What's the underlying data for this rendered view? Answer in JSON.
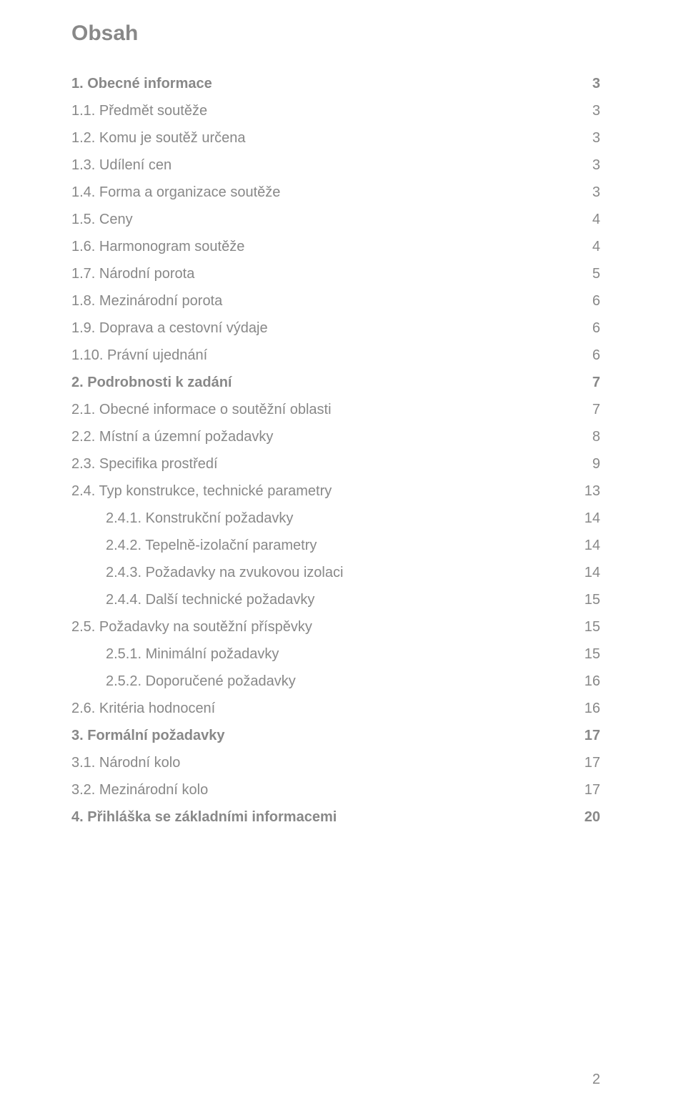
{
  "title": "Obsah",
  "toc": [
    {
      "label": "1. Obecné informace",
      "page": "3",
      "bold": true,
      "indent": 1
    },
    {
      "label": "1.1. Předmět soutěže",
      "page": "3",
      "bold": false,
      "indent": 1
    },
    {
      "label": "1.2. Komu je soutěž určena",
      "page": "3",
      "bold": false,
      "indent": 1
    },
    {
      "label": "1.3. Udílení cen",
      "page": "3",
      "bold": false,
      "indent": 1
    },
    {
      "label": "1.4. Forma a organizace soutěže",
      "page": "3",
      "bold": false,
      "indent": 1
    },
    {
      "label": "1.5. Ceny",
      "page": "4",
      "bold": false,
      "indent": 1
    },
    {
      "label": "1.6. Harmonogram soutěže",
      "page": "4",
      "bold": false,
      "indent": 1
    },
    {
      "label": "1.7. Národní porota",
      "page": "5",
      "bold": false,
      "indent": 1
    },
    {
      "label": "1.8. Mezinárodní porota",
      "page": "6",
      "bold": false,
      "indent": 1
    },
    {
      "label": "1.9. Doprava a cestovní výdaje",
      "page": "6",
      "bold": false,
      "indent": 1
    },
    {
      "label": "1.10. Právní ujednání",
      "page": "6",
      "bold": false,
      "indent": 1
    },
    {
      "label": "2. Podrobnosti k zadání",
      "page": "7",
      "bold": true,
      "indent": 1
    },
    {
      "label": "2.1. Obecné informace o soutěžní oblasti",
      "page": "7",
      "bold": false,
      "indent": 1
    },
    {
      "label": "2.2. Místní a územní požadavky",
      "page": "8",
      "bold": false,
      "indent": 1
    },
    {
      "label": "2.3. Specifika prostředí",
      "page": "9",
      "bold": false,
      "indent": 1
    },
    {
      "label": "2.4. Typ konstrukce, technické parametry",
      "page": "13",
      "bold": false,
      "indent": 1
    },
    {
      "label": "2.4.1. Konstrukční požadavky",
      "page": "14",
      "bold": false,
      "indent": 2
    },
    {
      "label": "2.4.2. Tepelně-izolační parametry",
      "page": "14",
      "bold": false,
      "indent": 2
    },
    {
      "label": "2.4.3. Požadavky na zvukovou izolaci",
      "page": "14",
      "bold": false,
      "indent": 2
    },
    {
      "label": "2.4.4. Další technické požadavky",
      "page": "15",
      "bold": false,
      "indent": 2
    },
    {
      "label": "2.5. Požadavky na soutěžní příspěvky",
      "page": "15",
      "bold": false,
      "indent": 1
    },
    {
      "label": "2.5.1. Minimální požadavky",
      "page": "15",
      "bold": false,
      "indent": 2
    },
    {
      "label": "2.5.2. Doporučené požadavky",
      "page": "16",
      "bold": false,
      "indent": 2
    },
    {
      "label": "2.6. Kritéria hodnocení",
      "page": "16",
      "bold": false,
      "indent": 1
    },
    {
      "label": "3. Formální požadavky",
      "page": "17",
      "bold": true,
      "indent": 1
    },
    {
      "label": "3.1. Národní kolo",
      "page": "17",
      "bold": false,
      "indent": 1
    },
    {
      "label": "3.2. Mezinárodní kolo",
      "page": "17",
      "bold": false,
      "indent": 1
    },
    {
      "label": "4. Přihláška se základními informacemi",
      "page": "20",
      "bold": true,
      "indent": 1
    }
  ],
  "footer_page": "2",
  "colors": {
    "text": "#888888",
    "background": "#ffffff"
  },
  "typography": {
    "title_fontsize": 30,
    "row_fontsize": 20,
    "font_family": "Arial"
  }
}
